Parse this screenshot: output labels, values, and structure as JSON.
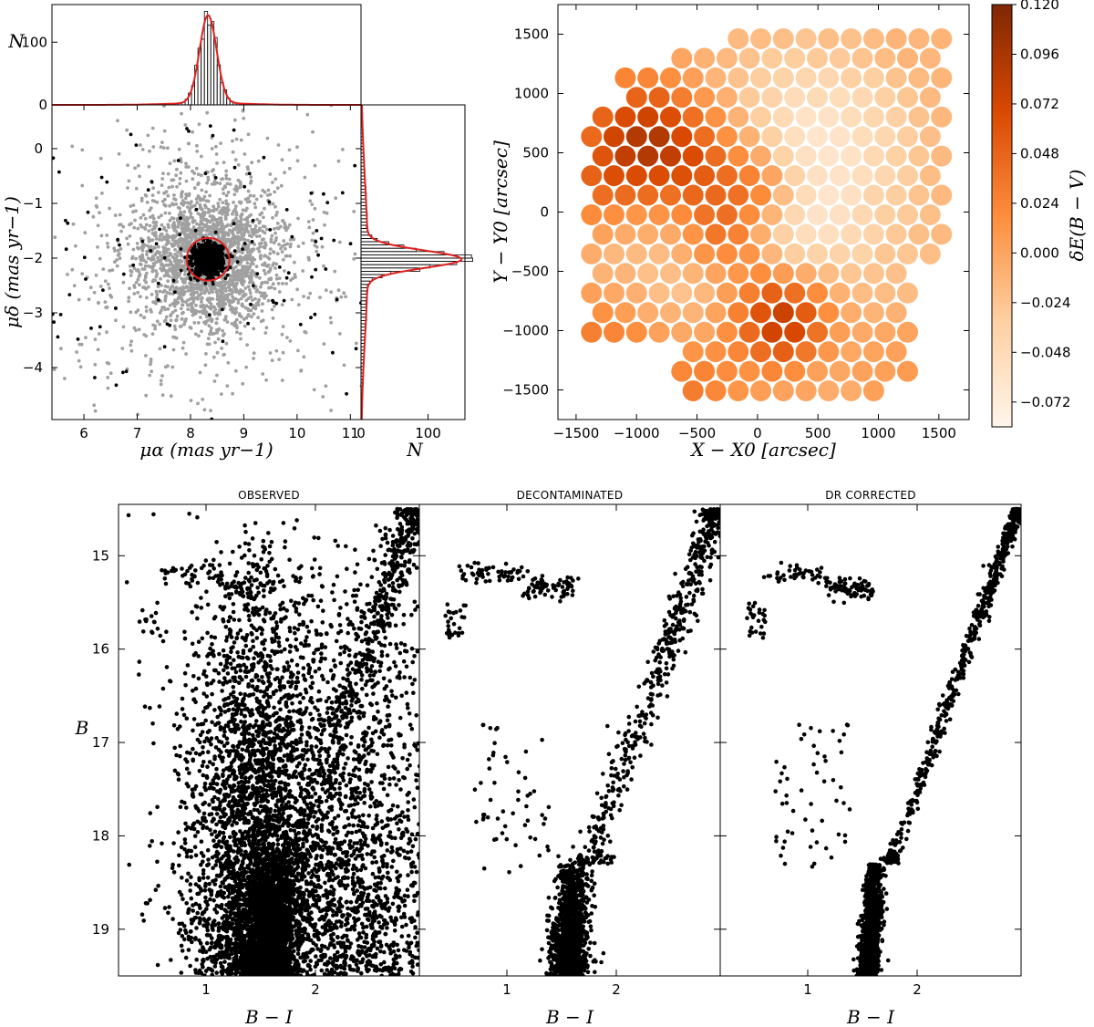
{
  "chart_data": [
    {
      "type": "scatter",
      "id": "pm-vpd",
      "xlabel": "μα (mas yr−1)",
      "ylabel": "μδ (mas yr−1)",
      "xlim": [
        5.4,
        11.2
      ],
      "ylim": [
        -4.95,
        0.8
      ],
      "x_ticks": [
        6,
        7,
        8,
        9,
        10,
        11
      ],
      "y_ticks": [
        0,
        -1,
        -2,
        -3,
        -4
      ],
      "series": [
        {
          "color": "#a0a0a0",
          "distribution": {
            "center": [
              8.3,
              -2.0
            ],
            "sigma": [
              0.55,
              0.55
            ],
            "n": 2600
          }
        },
        {
          "color": "#000000",
          "distribution": {
            "center": [
              8.33,
              -2.02
            ],
            "sigma": [
              0.14,
              0.14
            ],
            "n": 900
          }
        }
      ],
      "selection_circle": {
        "center": [
          8.33,
          -2.02
        ],
        "radius": 0.4,
        "color": "#e02020"
      }
    },
    {
      "type": "bar",
      "id": "pm-ra-histogram",
      "ylabel": "N",
      "xlim": [
        5.4,
        11.2
      ],
      "ylim": [
        0,
        160
      ],
      "y_ticks": [
        0,
        100
      ],
      "y_tick_labels": [
        "0",
        "100"
      ],
      "gaussian_fit": {
        "mean": 8.33,
        "sigma": 0.16,
        "amplitude": 140,
        "color": "#e02020"
      }
    },
    {
      "type": "bar",
      "id": "pm-dec-histogram",
      "orientation": "horizontal",
      "xlabel": "N",
      "xlim": [
        0,
        155
      ],
      "x_ticks": [
        0,
        100
      ],
      "x_tick_labels": [
        "0",
        "100"
      ],
      "gaussian_fit": {
        "mean": -2.02,
        "sigma": 0.16,
        "amplitude": 140,
        "color": "#e02020"
      }
    },
    {
      "type": "heatmap",
      "id": "reddening-map",
      "xlabel": "X − X0 [arcsec]",
      "ylabel": "Y − Y0 [arcsec]",
      "xlim": [
        -1650,
        1750
      ],
      "ylim": [
        -1750,
        1750
      ],
      "x_ticks": [
        -1500,
        -1000,
        -500,
        0,
        500,
        1000,
        1500
      ],
      "y_ticks": [
        1500,
        1000,
        500,
        0,
        -500,
        -1000,
        -1500
      ],
      "colorbar": {
        "label": "δE(B − V)",
        "range": [
          -0.084,
          0.12
        ],
        "ticks": [
          0.12,
          0.096,
          0.072,
          0.048,
          0.024,
          0.0,
          -0.024,
          -0.048,
          -0.072
        ],
        "tick_labels": [
          "0.120",
          "0.096",
          "0.072",
          "0.048",
          "0.024",
          "0.000",
          "−0.024",
          "−0.048",
          "−0.072"
        ],
        "colors": [
          "#fff5eb",
          "#fdd0a2",
          "#fd8d3c",
          "#d94801",
          "#7f2704"
        ]
      },
      "colormap": "Oranges"
    },
    {
      "type": "scatter",
      "id": "cmd-observed",
      "title": "OBSERVED",
      "xlabel": "B − I",
      "ylabel": "B",
      "xlim": [
        0.2,
        2.95
      ],
      "ylim": [
        19.5,
        14.45
      ],
      "x_ticks": [
        1,
        2
      ],
      "y_ticks": [
        15,
        16,
        17,
        18,
        19
      ]
    },
    {
      "type": "scatter",
      "id": "cmd-decontaminated",
      "title": "DECONTAMINATED",
      "xlabel": "B − I",
      "xlim": [
        0.2,
        2.95
      ],
      "ylim": [
        19.5,
        14.45
      ],
      "x_ticks": [
        1,
        2
      ]
    },
    {
      "type": "scatter",
      "id": "cmd-dr-corrected",
      "title": "DR CORRECTED",
      "xlabel": "B − I",
      "xlim": [
        0.2,
        2.95
      ],
      "ylim": [
        19.5,
        14.45
      ],
      "x_ticks": [
        1,
        2
      ]
    }
  ]
}
